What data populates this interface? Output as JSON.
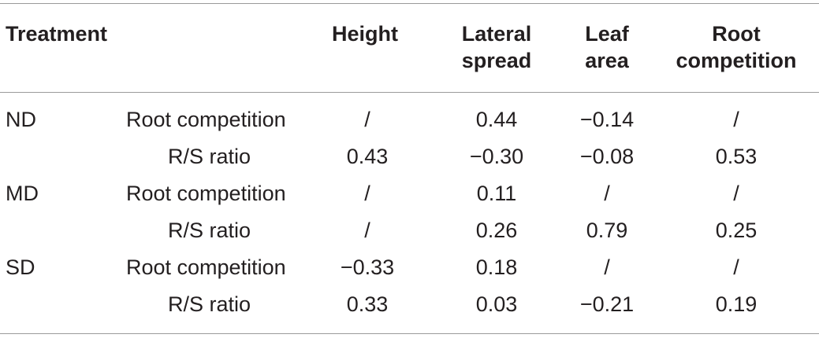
{
  "table": {
    "headers": {
      "treatment": "Treatment",
      "height": "Height",
      "lateral_spread_line1": "Lateral",
      "lateral_spread_line2": "spread",
      "leaf_area_line1": "Leaf",
      "leaf_area_line2": "area",
      "root_competition_line1": "Root",
      "root_competition_line2": "competition"
    },
    "rows": [
      {
        "treatment": "ND",
        "variable": "Root competition",
        "height": "/",
        "lateral_spread": "0.44",
        "leaf_area": "−0.14",
        "root_competition": "/"
      },
      {
        "treatment": "",
        "variable": "R/S ratio",
        "height": "0.43",
        "lateral_spread": "−0.30",
        "leaf_area": "−0.08",
        "root_competition": "0.53"
      },
      {
        "treatment": "MD",
        "variable": "Root competition",
        "height": "/",
        "lateral_spread": "0.11",
        "leaf_area": "/",
        "root_competition": "/"
      },
      {
        "treatment": "",
        "variable": "R/S ratio",
        "height": "/",
        "lateral_spread": "0.26",
        "leaf_area": "0.79",
        "root_competition": "0.25"
      },
      {
        "treatment": "SD",
        "variable": "Root competition",
        "height": "−0.33",
        "lateral_spread": "0.18",
        "leaf_area": "/",
        "root_competition": "/"
      },
      {
        "treatment": "",
        "variable": "R/S ratio",
        "height": "0.33",
        "lateral_spread": "0.03",
        "leaf_area": "−0.21",
        "root_competition": "0.19"
      }
    ]
  }
}
